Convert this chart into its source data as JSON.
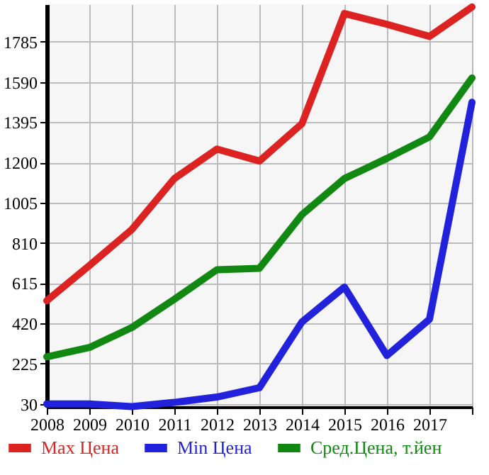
{
  "chart_data": {
    "type": "line",
    "categories": [
      "2008",
      "2009",
      "2010",
      "2011",
      "2012",
      "2013",
      "2014",
      "2015",
      "2016",
      "2017",
      null
    ],
    "series": [
      {
        "name": "Max Цена",
        "color": "#dd2222",
        "values": [
          530,
          700,
          875,
          1122,
          1265,
          1207,
          1388,
          1922,
          1870,
          1811,
          1954
        ]
      },
      {
        "name": "Min Цена",
        "color": "#2222dd",
        "values": [
          30,
          30,
          17,
          37,
          63,
          108,
          427,
          596,
          264,
          440,
          1492
        ]
      },
      {
        "name": "Сред.Цена, т.йен",
        "color": "#118811",
        "values": [
          258,
          303,
          400,
          537,
          680,
          687,
          947,
          1122,
          1220,
          1324,
          1610
        ]
      }
    ],
    "ylim": [
      15,
      1967
    ],
    "yticks": [
      30,
      225,
      420,
      615,
      810,
      1005,
      1200,
      1395,
      1590,
      1785
    ],
    "grid": true,
    "legend": "bottom",
    "marker": "none",
    "line_style": "solid"
  }
}
